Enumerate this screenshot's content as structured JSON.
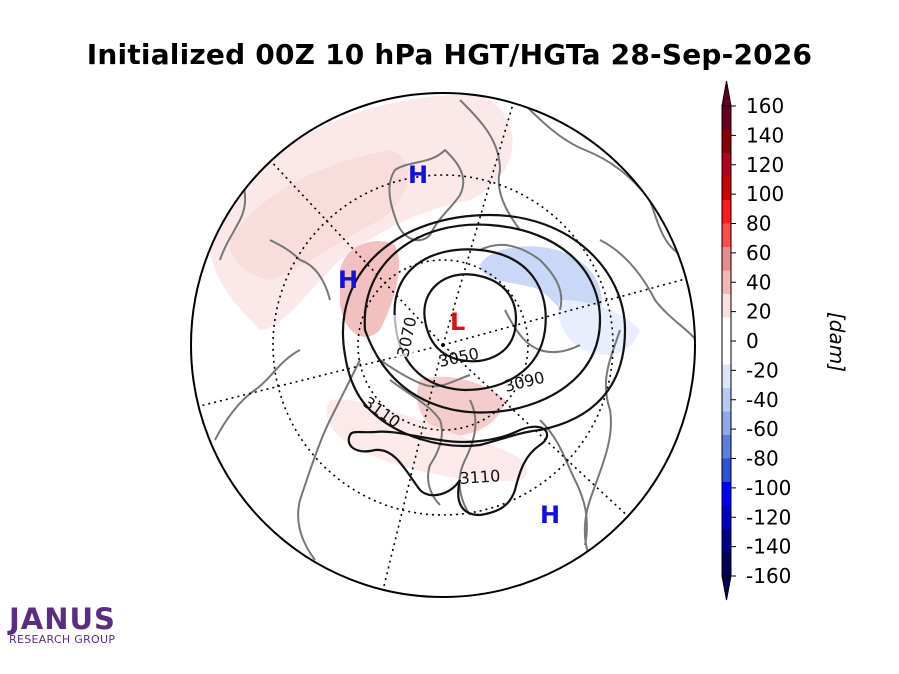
{
  "title": "Initialized 00Z 10 hPa HGT/HGTa 28-Sep-2026",
  "map": {
    "projection": "north-polar-stereographic",
    "pressure_centers": [
      {
        "label": "H",
        "color": "#1010e0"
      },
      {
        "label": "H",
        "color": "#1010e0"
      },
      {
        "label": "H",
        "color": "#1010e0"
      },
      {
        "label": "L",
        "color": "#e01010"
      }
    ],
    "contour_labels": [
      "3070",
      "3050",
      "3090",
      "3110",
      "3110"
    ],
    "anomaly_colors": {
      "positive": "#f4c6c6",
      "positive_light": "#fbe6e6",
      "negative": "#c6d6f4"
    }
  },
  "colorbar": {
    "label": "[dam]",
    "ticks": [
      "160",
      "140",
      "120",
      "100",
      "80",
      "60",
      "40",
      "20",
      "0",
      "-20",
      "-40",
      "-60",
      "-80",
      "-100",
      "-120",
      "-140",
      "-160"
    ],
    "colors": [
      "#67001f",
      "#8b0000",
      "#b2001e",
      "#d00000",
      "#ff1a1a",
      "#ff4d4d",
      "#e98b8b",
      "#f2b8b8",
      "#f9dede",
      "#ffffff",
      "#ffffff",
      "#dde6f8",
      "#b8caf2",
      "#8ea9ea",
      "#5b7fe0",
      "#2a52d6",
      "#0000ff",
      "#0000cd",
      "#00008b",
      "#000057"
    ]
  },
  "logo": {
    "name": "JANUS",
    "subtitle": "RESEARCH GROUP"
  }
}
